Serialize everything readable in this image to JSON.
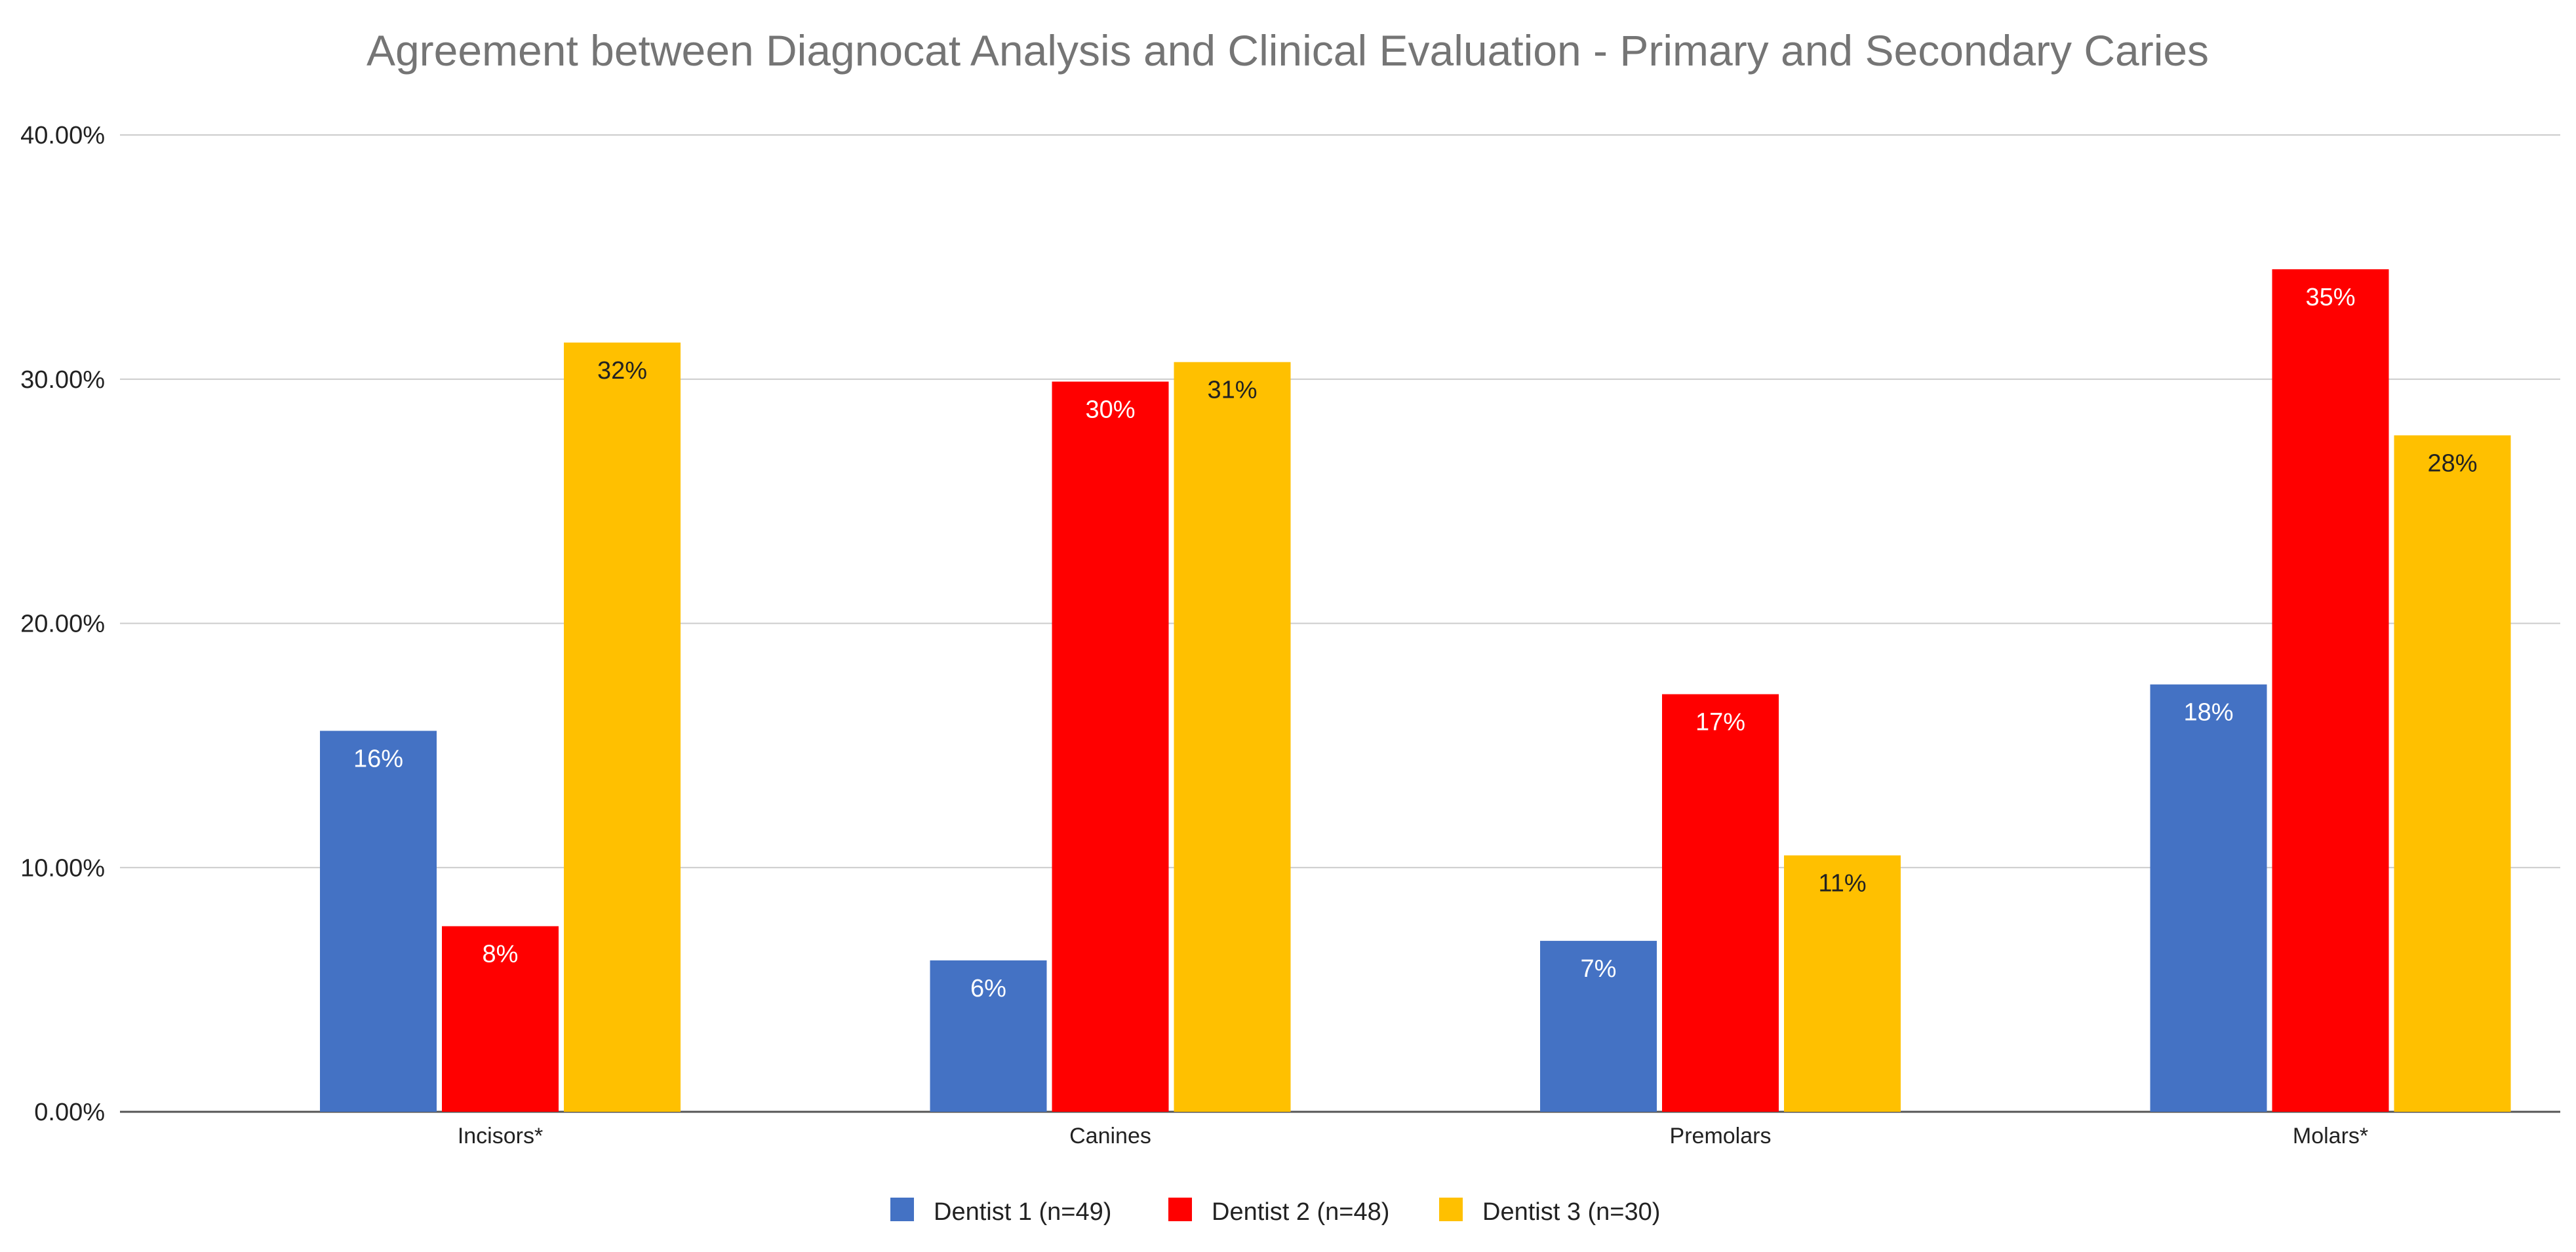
{
  "chart_data": {
    "type": "bar",
    "title": "Agreement between Diagnocat Analysis and Clinical Evaluation - Primary and Secondary Caries",
    "xlabel": "",
    "ylabel": "",
    "categories": [
      "Incisors*",
      "Canines",
      "Premolars",
      "Molars*"
    ],
    "series": [
      {
        "name": "Dentist 1 (n=49)",
        "color": "#4472C4",
        "label_color": "#FFFFFF",
        "values": [
          15.6,
          6.2,
          7.0,
          17.5
        ],
        "labels": [
          "16%",
          "6%",
          "7%",
          "18%"
        ]
      },
      {
        "name": "Dentist 2 (n=48)",
        "color": "#FF0000",
        "label_color": "#FFFFFF",
        "values": [
          7.6,
          29.9,
          17.1,
          34.5
        ],
        "labels": [
          "8%",
          "30%",
          "17%",
          "35%"
        ]
      },
      {
        "name": "Dentist  3 (n=30)",
        "color": "#FFC000",
        "label_color": "#222222",
        "values": [
          31.5,
          30.7,
          10.5,
          27.7
        ],
        "labels": [
          "32%",
          "31%",
          "11%",
          "28%"
        ]
      }
    ],
    "ylim": [
      0,
      40
    ],
    "yticks": [
      {
        "value": 0,
        "label": "0.00%"
      },
      {
        "value": 10,
        "label": "10.00%"
      },
      {
        "value": 20,
        "label": "20.00%"
      },
      {
        "value": 30,
        "label": "30.00%"
      },
      {
        "value": 40,
        "label": "40.00%"
      }
    ],
    "grid": true,
    "legend_position": "bottom-center"
  }
}
